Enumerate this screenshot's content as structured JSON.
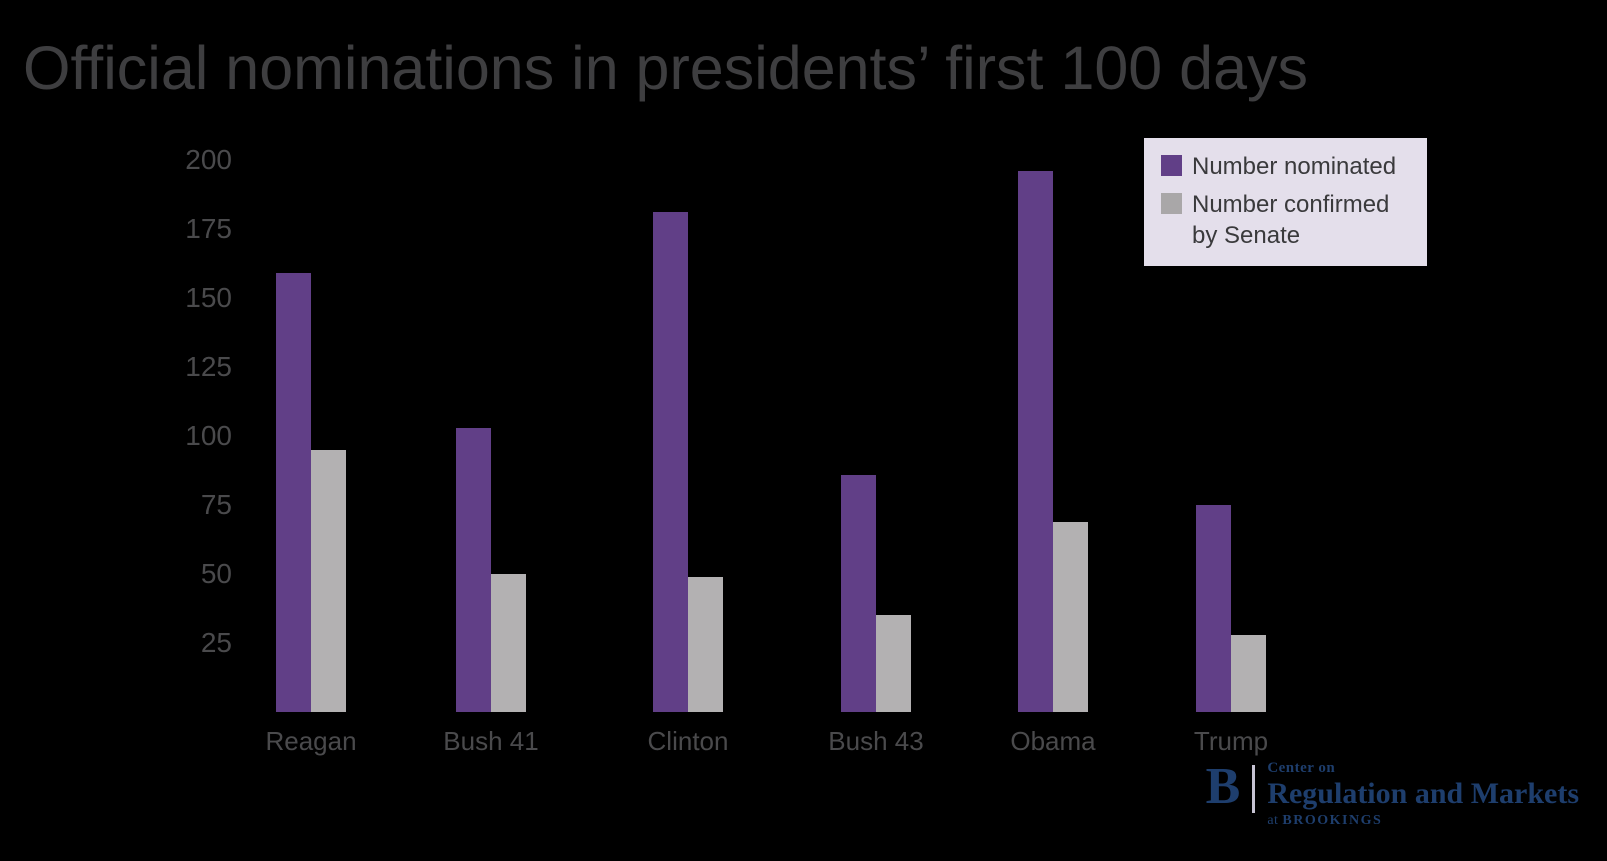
{
  "title": "Official nominations in presidents’ first 100 days",
  "chart_data": {
    "type": "bar",
    "title": "Official nominations in presidents’ first 100 days",
    "categories": [
      "Reagan",
      "Bush 41",
      "Clinton",
      "Bush 43",
      "Obama",
      "Trump"
    ],
    "series": [
      {
        "name": "Number nominated",
        "color": "#613f87",
        "values": [
          159,
          103,
          181,
          86,
          196,
          75
        ]
      },
      {
        "name": "Number confirmed by Senate",
        "color": "#b3b1b2",
        "values": [
          95,
          50,
          49,
          35,
          69,
          28
        ]
      }
    ],
    "xlabel": "",
    "ylabel": "",
    "ylim": [
      0,
      200
    ],
    "yticks": [
      25,
      50,
      75,
      100,
      125,
      150,
      175,
      200
    ],
    "grid": false,
    "legend_position": "top-right",
    "legend_background": "#e4dfeb"
  },
  "legend": {
    "item1_label": "Number nominated",
    "item2_label_line1": "Number confirmed",
    "item2_label_line2": "by Senate"
  },
  "colors": {
    "background": "#000000",
    "title_text": "#3e3e40",
    "axis_text": "#4a4a4c",
    "nominated_purple": "#613f87",
    "confirmed_gray": "#b3b1b2",
    "legend_background": "#e4dfeb",
    "logo_navy": "#1e3e6d"
  },
  "logo": {
    "b_mark": "B",
    "line1": "Center on",
    "line2": "Regulation and Markets",
    "line3_prefix": "at ",
    "line3_caps": "BROOKINGS"
  }
}
